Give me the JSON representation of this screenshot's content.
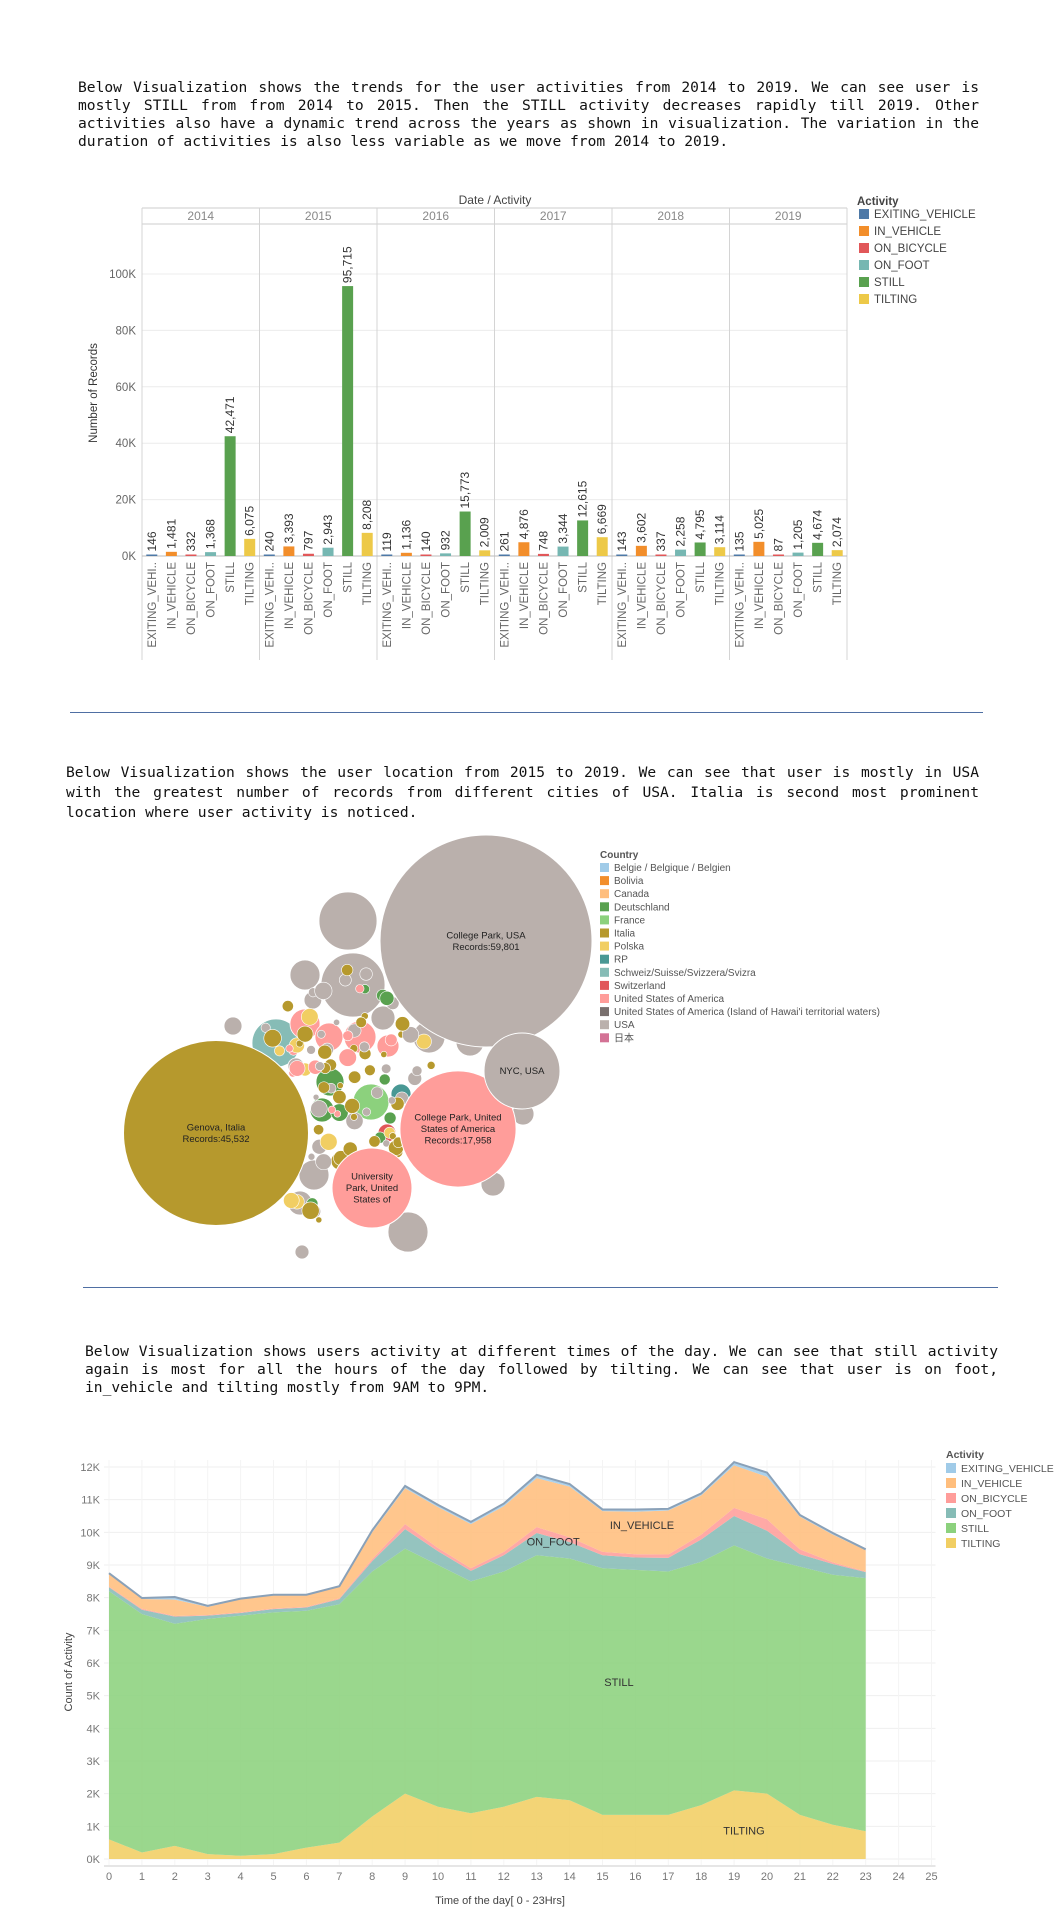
{
  "intro_1": "Below Visualization shows the trends for the user activities from 2014 to 2019. We can see user is mostly STILL from from 2014 to 2015. Then the STILL activity decreases rapidly till 2019. Other activities also have a dynamic trend across the years as shown in visualization. The variation in the duration of activities is also less variable as we move from 2014 to 2019.",
  "intro_2": "Below Visualization shows the user location from 2015 to 2019. We can see that user is mostly in USA with the greatest number of records from different cities of USA. Italia is second most prominent location where user activity is noticed.",
  "intro_3": "Below Visualization shows users activity at different times of the day. We can see that still activity again is most for all the hours of the day followed by tilting. We can see that user is on foot, in_vehicle and tilting mostly from 9AM to 9PM.",
  "chart_data": [
    {
      "type": "bar",
      "title": "Date / Activity",
      "ylabel": "Number of Records",
      "ylim": [
        0,
        120000
      ],
      "yticks": [
        0,
        20000,
        40000,
        60000,
        80000,
        100000
      ],
      "ytick_labels": [
        "0K",
        "20K",
        "40K",
        "60K",
        "80K",
        "100K"
      ],
      "years": [
        "2014",
        "2015",
        "2016",
        "2017",
        "2018",
        "2019"
      ],
      "categories": [
        "EXITING_VEHICLE",
        "IN_VEHICLE",
        "ON_BICYCLE",
        "ON_FOOT",
        "STILL",
        "TILTING"
      ],
      "category_labels": [
        "EXITING_VEHI..",
        "IN_VEHICLE",
        "ON_BICYCLE",
        "ON_FOOT",
        "STILL",
        "TILTING"
      ],
      "colors": [
        "#4e79a7",
        "#f28e2b",
        "#e15759",
        "#76b7b2",
        "#59a14f",
        "#edc948"
      ],
      "legend_title": "Activity",
      "legend_position": "right",
      "values": [
        [
          146,
          1481,
          332,
          1368,
          42471,
          6075
        ],
        [
          240,
          3393,
          797,
          2943,
          95715,
          8208
        ],
        [
          119,
          1136,
          140,
          932,
          15773,
          2009
        ],
        [
          261,
          4876,
          748,
          3344,
          12615,
          6669
        ],
        [
          143,
          3602,
          337,
          2258,
          4795,
          3114
        ],
        [
          135,
          5025,
          87,
          1205,
          4674,
          2074
        ]
      ],
      "value_labels": [
        [
          "146",
          "1,481",
          "332",
          "1,368",
          "42,471",
          "6,075"
        ],
        [
          "240",
          "3,393",
          "797",
          "2,943",
          "95,715",
          "8,208"
        ],
        [
          "119",
          "1,136",
          "140",
          "932",
          "15,773",
          "2,009"
        ],
        [
          "261",
          "4,876",
          "748",
          "3,344",
          "12,615",
          "6,669"
        ],
        [
          "143",
          "3,602",
          "337",
          "2,258",
          "4,795",
          "3,114"
        ],
        [
          "135",
          "5,025",
          "87",
          "1,205",
          "4,674",
          "2,074"
        ]
      ],
      "grid": true
    },
    {
      "type": "bubble",
      "legend_title": "Country",
      "legend_position": "right",
      "legend": [
        {
          "name": "Belgie / Belgique / Belgien",
          "color": "#a0cbe8"
        },
        {
          "name": "Bolivia",
          "color": "#f28e2b"
        },
        {
          "name": "Canada",
          "color": "#ffbe7d"
        },
        {
          "name": "Deutschland",
          "color": "#59a14f"
        },
        {
          "name": "France",
          "color": "#8cd17d"
        },
        {
          "name": "Italia",
          "color": "#b6992d"
        },
        {
          "name": "Polska",
          "color": "#f1ce63"
        },
        {
          "name": "RP",
          "color": "#499894"
        },
        {
          "name": "Schweiz/Suisse/Svizzera/Svizra",
          "color": "#86bcb6"
        },
        {
          "name": "Switzerland",
          "color": "#e15759"
        },
        {
          "name": "United States of America",
          "color": "#ff9d9a"
        },
        {
          "name": "United States of America (Island of Hawai'i territorial waters)",
          "color": "#79706e"
        },
        {
          "name": "USA",
          "color": "#bab0ac"
        },
        {
          "name": "日本",
          "color": "#d37295"
        }
      ],
      "labeled_bubbles": [
        {
          "city": "College Park, USA",
          "records": "Records:59,801",
          "value": 59801,
          "country": "USA"
        },
        {
          "city": "Genova, Italia",
          "records": "Records:45,532",
          "value": 45532,
          "country": "Italia"
        },
        {
          "city": "College Park, United States of America",
          "records": "Records:17,958",
          "value": 17958,
          "country": "United States of America"
        },
        {
          "city": "NYC, USA",
          "records": "",
          "country": "USA"
        },
        {
          "city": "University Park, United States of",
          "records": "",
          "country": "United States of America"
        }
      ]
    },
    {
      "type": "area",
      "stacked": true,
      "xlabel": "Time of the day[ 0 - 23Hrs]",
      "ylabel": "Count of Activity",
      "xlim": [
        0,
        25
      ],
      "ylim": [
        -250,
        12500
      ],
      "xticks": [
        0,
        1,
        2,
        3,
        4,
        5,
        6,
        7,
        8,
        9,
        10,
        11,
        12,
        13,
        14,
        15,
        16,
        17,
        18,
        19,
        20,
        21,
        22,
        23,
        24,
        25
      ],
      "yticks": [
        0,
        1000,
        2000,
        3000,
        4000,
        5000,
        6000,
        7000,
        8000,
        9000,
        10000,
        11000,
        12000
      ],
      "ytick_labels": [
        "0K",
        "1K",
        "2K",
        "3K",
        "4K",
        "5K",
        "6K",
        "7K",
        "8K",
        "9K",
        "10K",
        "11K",
        "12K"
      ],
      "legend_title": "Activity",
      "legend_position": "right",
      "x": [
        0,
        1,
        2,
        3,
        4,
        5,
        6,
        7,
        8,
        9,
        10,
        11,
        12,
        13,
        14,
        15,
        16,
        17,
        18,
        19,
        20,
        21,
        22,
        23
      ],
      "series": [
        {
          "name": "TILTING",
          "color": "#f1ce63",
          "values": [
            600,
            200,
            400,
            150,
            100,
            150,
            350,
            500,
            1300,
            2000,
            1600,
            1400,
            1600,
            1900,
            1800,
            1350,
            1350,
            1350,
            1650,
            2100,
            2000,
            1350,
            1050,
            850
          ]
        },
        {
          "name": "STILL",
          "color": "#8cd17d",
          "values": [
            7600,
            7300,
            6800,
            7200,
            7350,
            7400,
            7250,
            7300,
            7500,
            7500,
            7400,
            7100,
            7200,
            7400,
            7400,
            7550,
            7500,
            7450,
            7450,
            7500,
            7200,
            7600,
            7650,
            7750
          ]
        },
        {
          "name": "ON_FOOT",
          "color": "#86bcb6",
          "values": [
            120,
            130,
            220,
            100,
            80,
            100,
            100,
            150,
            320,
            600,
            420,
            320,
            500,
            680,
            500,
            400,
            380,
            420,
            680,
            900,
            850,
            380,
            330,
            180
          ]
        },
        {
          "name": "ON_BICYCLE",
          "color": "#ff9d9a",
          "values": [
            20,
            30,
            20,
            20,
            20,
            20,
            20,
            30,
            60,
            150,
            100,
            80,
            100,
            180,
            150,
            100,
            100,
            100,
            150,
            250,
            350,
            150,
            50,
            20
          ]
        },
        {
          "name": "IN_VEHICLE",
          "color": "#ffbe7d",
          "values": [
            400,
            300,
            500,
            250,
            400,
            400,
            350,
            350,
            820,
            1100,
            1250,
            1350,
            1400,
            1500,
            1550,
            1250,
            1300,
            1350,
            1200,
            1300,
            1300,
            1000,
            850,
            650
          ]
        },
        {
          "name": "EXITING_VEHICLE",
          "color": "#a0cbe8",
          "values": [
            10,
            30,
            80,
            30,
            20,
            20,
            20,
            20,
            60,
            70,
            70,
            70,
            80,
            100,
            80,
            50,
            70,
            50,
            60,
            100,
            130,
            50,
            50,
            30
          ]
        }
      ],
      "legend_order": [
        "EXITING_VEHICLE",
        "IN_VEHICLE",
        "ON_BICYCLE",
        "ON_FOOT",
        "STILL",
        "TILTING"
      ],
      "annotations": [
        {
          "text": "ON_FOOT",
          "x": 13.5,
          "y": 9600
        },
        {
          "text": "IN_VEHICLE",
          "x": 16.2,
          "y": 10100
        },
        {
          "text": "STILL",
          "x": 15.5,
          "y": 5300
        },
        {
          "text": "TILTING",
          "x": 19.3,
          "y": 750
        }
      ],
      "grid": true
    }
  ]
}
